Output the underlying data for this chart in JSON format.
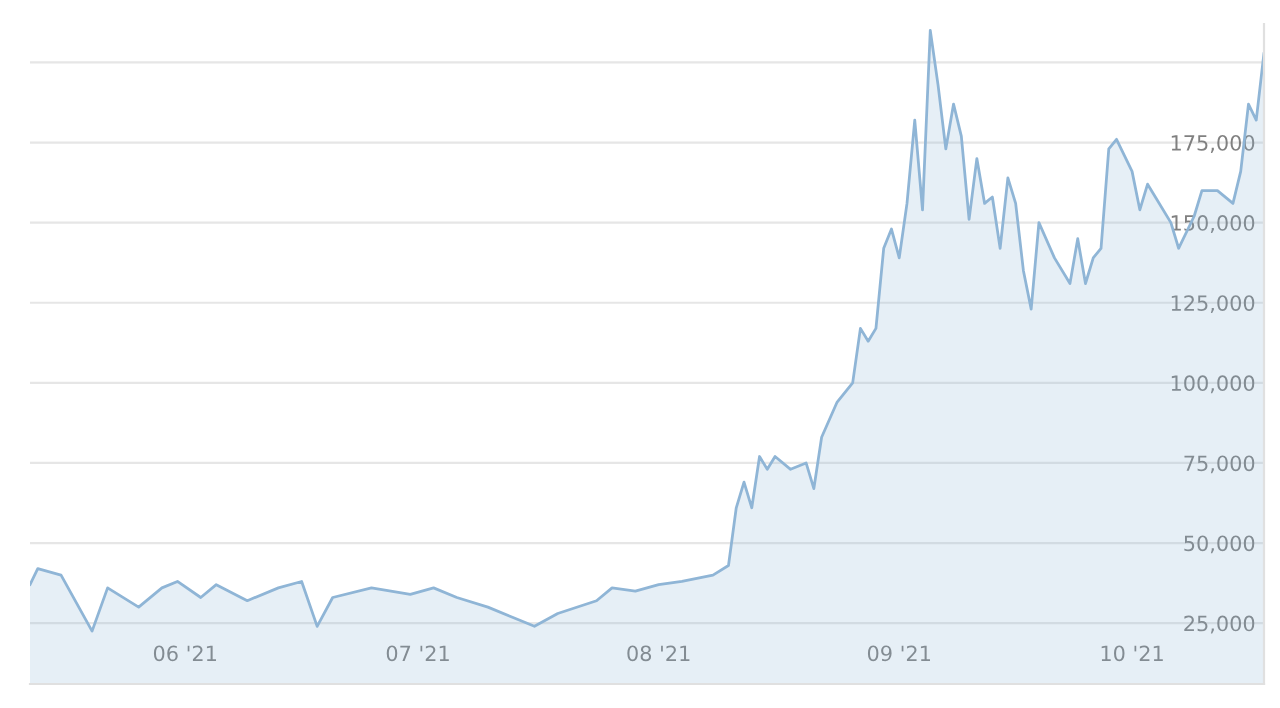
{
  "chart_data": {
    "type": "area",
    "x": [
      "2021-05-12",
      "2021-05-13",
      "2021-05-16",
      "2021-05-20",
      "2021-05-22",
      "2021-05-26",
      "2021-05-29",
      "2021-05-31",
      "2021-06-03",
      "2021-06-05",
      "2021-06-09",
      "2021-06-13",
      "2021-06-16",
      "2021-06-18",
      "2021-06-20",
      "2021-06-25",
      "2021-06-30",
      "2021-07-03",
      "2021-07-06",
      "2021-07-10",
      "2021-07-13",
      "2021-07-16",
      "2021-07-19",
      "2021-07-24",
      "2021-07-26",
      "2021-07-29",
      "2021-08-01",
      "2021-08-04",
      "2021-08-08",
      "2021-08-10",
      "2021-08-11",
      "2021-08-12",
      "2021-08-13",
      "2021-08-14",
      "2021-08-15",
      "2021-08-16",
      "2021-08-18",
      "2021-08-20",
      "2021-08-21",
      "2021-08-22",
      "2021-08-24",
      "2021-08-26",
      "2021-08-27",
      "2021-08-28",
      "2021-08-29",
      "2021-08-30",
      "2021-08-31",
      "2021-09-01",
      "2021-09-02",
      "2021-09-03",
      "2021-09-04",
      "2021-09-05",
      "2021-09-06",
      "2021-09-07",
      "2021-09-08",
      "2021-09-09",
      "2021-09-10",
      "2021-09-11",
      "2021-09-12",
      "2021-09-13",
      "2021-09-14",
      "2021-09-15",
      "2021-09-16",
      "2021-09-17",
      "2021-09-18",
      "2021-09-19",
      "2021-09-21",
      "2021-09-23",
      "2021-09-24",
      "2021-09-25",
      "2021-09-26",
      "2021-09-27",
      "2021-09-28",
      "2021-09-29",
      "2021-10-01",
      "2021-10-02",
      "2021-10-03",
      "2021-10-04",
      "2021-10-06",
      "2021-10-07",
      "2021-10-09",
      "2021-10-10",
      "2021-10-12",
      "2021-10-14",
      "2021-10-15",
      "2021-10-16",
      "2021-10-17",
      "2021-10-18"
    ],
    "series": [
      {
        "color": "#8fb5d6",
        "values": [
          37000,
          42000,
          40000,
          22500,
          36000,
          30000,
          36000,
          38000,
          33000,
          37000,
          32000,
          36000,
          38000,
          24000,
          33000,
          36000,
          34000,
          36000,
          33000,
          30000,
          27000,
          24000,
          28000,
          32000,
          36000,
          35000,
          37000,
          38000,
          40000,
          43000,
          61000,
          69000,
          61000,
          77000,
          73000,
          77000,
          73000,
          75000,
          67000,
          83000,
          94000,
          100000,
          117000,
          113000,
          117000,
          142000,
          148000,
          139000,
          156000,
          182000,
          154000,
          210000,
          193000,
          173000,
          187000,
          177000,
          151000,
          170000,
          156000,
          158000,
          142000,
          164000,
          156000,
          135000,
          123000,
          150000,
          139000,
          131000,
          145000,
          131000,
          139000,
          142000,
          173000,
          176000,
          166000,
          154000,
          162000,
          158000,
          150000,
          142000,
          152000,
          160000,
          160000,
          156000,
          166000,
          187000,
          182000,
          203000
        ]
      }
    ],
    "xlim": [
      "2021-05-12",
      "2021-10-18"
    ],
    "xticks": [
      {
        "value": "2021-06-01",
        "label": "06 '21"
      },
      {
        "value": "2021-07-01",
        "label": "07 '21"
      },
      {
        "value": "2021-08-01",
        "label": "08 '21"
      },
      {
        "value": "2021-09-01",
        "label": "09 '21"
      },
      {
        "value": "2021-10-01",
        "label": "10 '21"
      }
    ],
    "ylim": [
      6000,
      212000
    ],
    "yticks": [
      {
        "value": 25000,
        "label": "25,000"
      },
      {
        "value": 50000,
        "label": "50,000"
      },
      {
        "value": 75000,
        "label": "75,000"
      },
      {
        "value": 100000,
        "label": "100,000"
      },
      {
        "value": 125000,
        "label": "125,000"
      },
      {
        "value": 150000,
        "label": "150,000"
      },
      {
        "value": 175000,
        "label": "175,000"
      },
      {
        "value": 200000,
        "label": null
      }
    ],
    "grid": "y"
  }
}
